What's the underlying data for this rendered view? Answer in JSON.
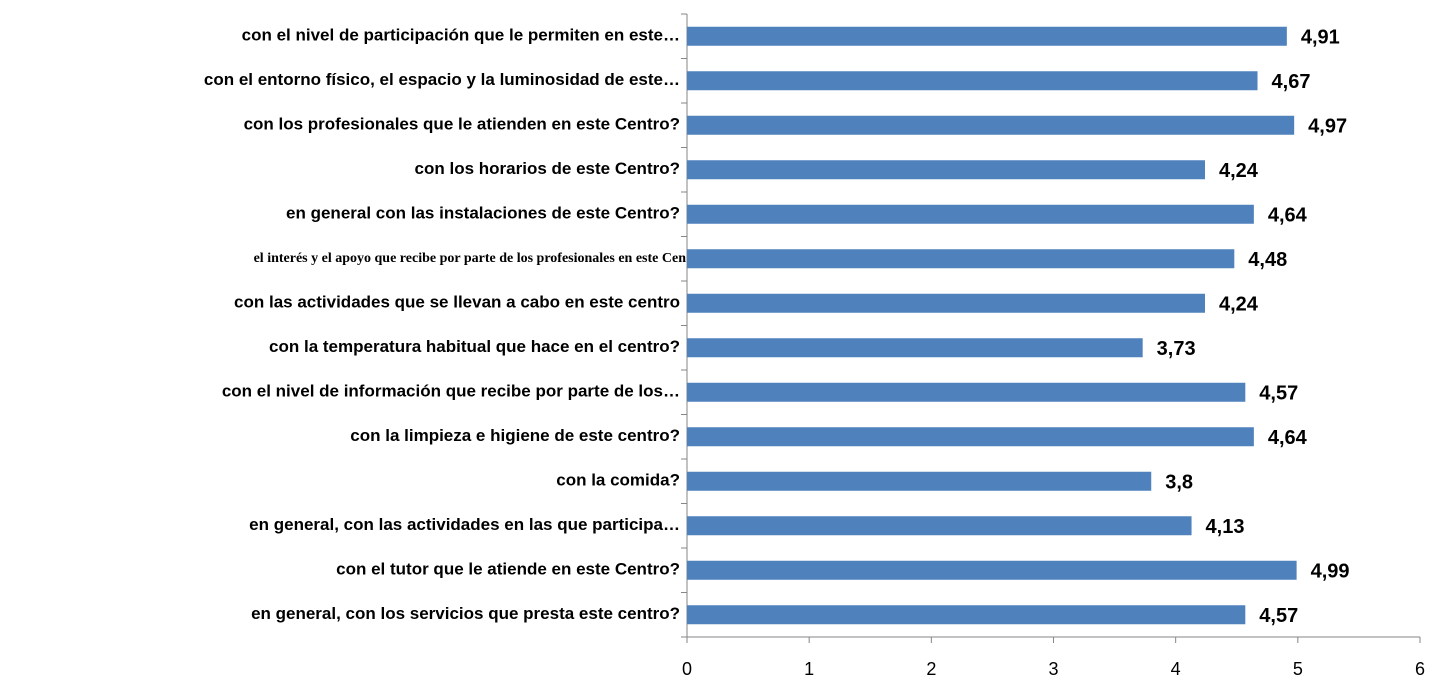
{
  "chart_data": {
    "type": "bar",
    "orientation": "horizontal",
    "categories": [
      "con el nivel de participación que le permiten en este…",
      "con el entorno físico, el espacio y la luminosidad de este…",
      "con los profesionales que le atienden en este Centro?",
      "con los horarios de este Centro?",
      "en general con las instalaciones de este Centro?",
      "el interés y el apoyo que recibe por parte de los profesionales  en este Cen",
      "con las actividades que se llevan a cabo en este centro",
      "con la temperatura habitual que hace en el centro?",
      "con el nivel de información que recibe por parte de los…",
      "con la limpieza e higiene de este centro?",
      "con la comida?",
      "en general, con las actividades en las que participa…",
      "con el tutor que le atiende en este Centro?",
      "en general, con los servicios que presta este centro?"
    ],
    "values": [
      4.91,
      4.67,
      4.97,
      4.24,
      4.64,
      4.48,
      4.24,
      3.73,
      4.57,
      4.64,
      3.8,
      4.13,
      4.99,
      4.57
    ],
    "value_labels": [
      "4,91",
      "4,67",
      "4,97",
      "4,24",
      "4,64",
      "4,48",
      "4,24",
      "3,73",
      "4,57",
      "4,64",
      "3,8",
      "4,13",
      "4,99",
      "4,57"
    ],
    "color": "#4f81bd",
    "xlim": [
      0,
      6
    ],
    "xticks": [
      0,
      1,
      2,
      3,
      4,
      5,
      6
    ],
    "grid": false
  }
}
